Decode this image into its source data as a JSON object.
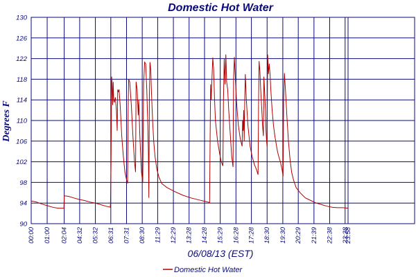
{
  "chart_data": {
    "type": "line",
    "title": "Domestic Hot Water",
    "xlabel": "06/08/13 (EST)",
    "ylabel": "Degrees F",
    "ylim": [
      90,
      130
    ],
    "yticks": [
      90,
      94,
      98,
      102,
      106,
      110,
      114,
      118,
      122,
      126,
      130
    ],
    "xlim": [
      0,
      1440
    ],
    "xticks": [
      {
        "label": "00:00",
        "t": 0
      },
      {
        "label": "01:00",
        "t": 60
      },
      {
        "label": "02:04",
        "t": 124
      },
      {
        "label": "04:32",
        "t": 182
      },
      {
        "label": "05:32",
        "t": 241
      },
      {
        "label": "06:31",
        "t": 299
      },
      {
        "label": "07:31",
        "t": 358
      },
      {
        "label": "08:30",
        "t": 417
      },
      {
        "label": "11:29",
        "t": 475
      },
      {
        "label": "12:29",
        "t": 534
      },
      {
        "label": "13:28",
        "t": 593
      },
      {
        "label": "14:28",
        "t": 651
      },
      {
        "label": "15:29",
        "t": 710
      },
      {
        "label": "16:28",
        "t": 769
      },
      {
        "label": "17:28",
        "t": 827
      },
      {
        "label": "18:30",
        "t": 886
      },
      {
        "label": "19:30",
        "t": 945
      },
      {
        "label": "20:29",
        "t": 1003
      },
      {
        "label": "21:39",
        "t": 1062
      },
      {
        "label": "22:38",
        "t": 1121
      },
      {
        "label": "23:38",
        "t": 1179
      },
      {
        "label": "23:58",
        "t": 1190
      }
    ],
    "grid": true,
    "legend_position": "bottom",
    "series": [
      {
        "name": "Domestic Hot Water",
        "color": "#b00000",
        "points": [
          [
            0,
            94.4
          ],
          [
            20,
            94.2
          ],
          [
            40,
            93.8
          ],
          [
            60,
            93.5
          ],
          [
            80,
            93.2
          ],
          [
            100,
            93.0
          ],
          [
            123,
            93.0
          ],
          [
            124,
            95.4
          ],
          [
            140,
            95.3
          ],
          [
            160,
            95.0
          ],
          [
            180,
            94.7
          ],
          [
            200,
            94.5
          ],
          [
            220,
            94.2
          ],
          [
            240,
            94.0
          ],
          [
            260,
            93.7
          ],
          [
            280,
            93.4
          ],
          [
            297,
            93.2
          ],
          [
            298,
            94.0
          ],
          [
            300,
            102.0
          ],
          [
            302,
            118.5
          ],
          [
            304,
            117.0
          ],
          [
            306,
            113.0
          ],
          [
            308,
            117.5
          ],
          [
            310,
            114.0
          ],
          [
            312,
            113.5
          ],
          [
            316,
            114.5
          ],
          [
            320,
            112.0
          ],
          [
            323,
            108.0
          ],
          [
            325,
            116.0
          ],
          [
            327,
            115.5
          ],
          [
            330,
            116.0
          ],
          [
            334,
            113.0
          ],
          [
            340,
            107.0
          ],
          [
            346,
            103.0
          ],
          [
            352,
            100.0
          ],
          [
            358,
            98.5
          ],
          [
            362,
            97.8
          ],
          [
            364,
            112.0
          ],
          [
            366,
            118.0
          ],
          [
            370,
            117.5
          ],
          [
            376,
            113.0
          ],
          [
            382,
            107.0
          ],
          [
            388,
            102.0
          ],
          [
            392,
            100.0
          ],
          [
            394,
            117.5
          ],
          [
            398,
            116.0
          ],
          [
            402,
            111.0
          ],
          [
            404,
            114.0
          ],
          [
            408,
            107.0
          ],
          [
            414,
            100.0
          ],
          [
            419,
            98.0
          ],
          [
            422,
            117.0
          ],
          [
            426,
            121.3
          ],
          [
            430,
            121.0
          ],
          [
            434,
            116.0
          ],
          [
            438,
            109.0
          ],
          [
            440,
            104.0
          ],
          [
            442,
            95.0
          ],
          [
            444,
            115.0
          ],
          [
            446,
            121.3
          ],
          [
            449,
            120.0
          ],
          [
            452,
            115.0
          ],
          [
            456,
            110.0
          ],
          [
            460,
            106.0
          ],
          [
            465,
            103.0
          ],
          [
            472,
            100.5
          ],
          [
            480,
            99.0
          ],
          [
            490,
            97.8
          ],
          [
            510,
            97.0
          ],
          [
            540,
            96.2
          ],
          [
            570,
            95.5
          ],
          [
            600,
            95.0
          ],
          [
            630,
            94.6
          ],
          [
            655,
            94.3
          ],
          [
            670,
            94.1
          ],
          [
            672,
            107.0
          ],
          [
            674,
            117.0
          ],
          [
            676,
            114.0
          ],
          [
            679,
            118.5
          ],
          [
            682,
            122.2
          ],
          [
            685,
            120.0
          ],
          [
            688,
            115.0
          ],
          [
            692,
            110.0
          ],
          [
            700,
            106.0
          ],
          [
            708,
            103.5
          ],
          [
            714,
            102.0
          ],
          [
            720,
            101.2
          ],
          [
            722,
            114.0
          ],
          [
            725,
            122.0
          ],
          [
            728,
            117.0
          ],
          [
            731,
            122.8
          ],
          [
            734,
            117.5
          ],
          [
            738,
            116.0
          ],
          [
            742,
            112.0
          ],
          [
            748,
            107.0
          ],
          [
            753,
            103.0
          ],
          [
            758,
            101.0
          ],
          [
            760,
            118.0
          ],
          [
            763,
            122.3
          ],
          [
            767,
            118.0
          ],
          [
            772,
            113.0
          ],
          [
            778,
            109.0
          ],
          [
            785,
            106.5
          ],
          [
            792,
            105.0
          ],
          [
            794,
            110.0
          ],
          [
            796,
            108.0
          ],
          [
            798,
            112.0
          ],
          [
            800,
            106.0
          ],
          [
            802,
            114.0
          ],
          [
            804,
            119.0
          ],
          [
            808,
            114.0
          ],
          [
            814,
            109.0
          ],
          [
            822,
            105.0
          ],
          [
            830,
            103.0
          ],
          [
            838,
            101.5
          ],
          [
            846,
            100.5
          ],
          [
            852,
            99.5
          ],
          [
            854,
            114.0
          ],
          [
            856,
            121.5
          ],
          [
            859,
            119.5
          ],
          [
            862,
            116.0
          ],
          [
            866,
            112.0
          ],
          [
            869,
            109.0
          ],
          [
            872,
            107.0
          ],
          [
            874,
            118.5
          ],
          [
            878,
            114.0
          ],
          [
            880,
            112.0
          ],
          [
            882,
            108.0
          ],
          [
            884,
            106.0
          ],
          [
            886,
            105.0
          ],
          [
            888,
            122.8
          ],
          [
            891,
            119.0
          ],
          [
            894,
            121.0
          ],
          [
            897,
            119.0
          ],
          [
            900,
            116.0
          ],
          [
            905,
            112.0
          ],
          [
            910,
            109.0
          ],
          [
            915,
            107.0
          ],
          [
            920,
            105.5
          ],
          [
            925,
            104.0
          ],
          [
            930,
            103.0
          ],
          [
            936,
            102.0
          ],
          [
            942,
            100.5
          ],
          [
            946,
            99.2
          ],
          [
            948,
            114.0
          ],
          [
            951,
            119.2
          ],
          [
            955,
            116.0
          ],
          [
            960,
            111.0
          ],
          [
            966,
            106.0
          ],
          [
            972,
            102.5
          ],
          [
            978,
            100.0
          ],
          [
            985,
            98.5
          ],
          [
            995,
            97.0
          ],
          [
            1010,
            96.0
          ],
          [
            1030,
            95.0
          ],
          [
            1050,
            94.5
          ],
          [
            1070,
            94.0
          ],
          [
            1090,
            93.7
          ],
          [
            1110,
            93.4
          ],
          [
            1130,
            93.2
          ],
          [
            1150,
            93.1
          ],
          [
            1170,
            93.1
          ],
          [
            1190,
            93.0
          ]
        ]
      }
    ]
  }
}
